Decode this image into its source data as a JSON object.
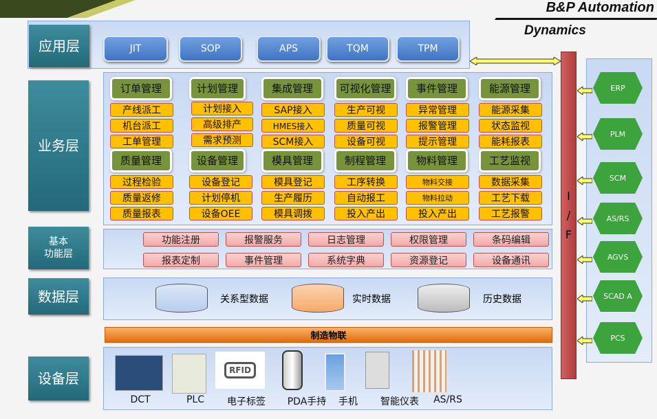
{
  "logo": {
    "line1": "B&P Automation",
    "line2": "Dynamics"
  },
  "layers": {
    "app": "应用层",
    "business": "业务层",
    "basic": "基本\n功能层",
    "data": "数据层",
    "device": "设备层"
  },
  "apps": [
    "JIT",
    "SOP",
    "APS",
    "TQM",
    "TPM"
  ],
  "business": [
    {
      "header": "订单管理",
      "items": [
        "产线派工",
        "机台派工",
        "工单管理"
      ]
    },
    {
      "header": "计划管理",
      "items": [
        "计划接入",
        "高级排产",
        "需求预测"
      ]
    },
    {
      "header": "集成管理",
      "items": [
        "SAP接入",
        "HMES接入",
        "SCM接入"
      ]
    },
    {
      "header": "可视化管理",
      "items": [
        "生产可视",
        "质量可视",
        "设备可视"
      ]
    },
    {
      "header": "事件管理",
      "items": [
        "异常管理",
        "报警管理",
        "提示管理"
      ]
    },
    {
      "header": "能源管理",
      "items": [
        "能源采集",
        "状态监视",
        "能耗报表"
      ]
    },
    {
      "header": "质量管理",
      "items": [
        "过程检验",
        "质量返修",
        "质量报表"
      ]
    },
    {
      "header": "设备管理",
      "items": [
        "设备登记",
        "计划停机",
        "设备OEE"
      ]
    },
    {
      "header": "模具管理",
      "items": [
        "模具登记",
        "生产履历",
        "模具调拨"
      ]
    },
    {
      "header": "制程管理",
      "items": [
        "工序转换",
        "自动报工",
        "投入产出"
      ]
    },
    {
      "header": "物料管理",
      "items": [
        "物料交接",
        "物料拉动",
        "投入产出"
      ]
    },
    {
      "header": "工艺监视",
      "items": [
        "数据采集",
        "工艺下载",
        "工艺报警"
      ]
    }
  ],
  "functions": [
    "功能注册",
    "报警服务",
    "日志管理",
    "权限管理",
    "条码编辑",
    "报表定制",
    "事件管理",
    "系统字典",
    "资源登记",
    "设备通讯"
  ],
  "data": [
    "关系型数据",
    "实时数据",
    "历史数据"
  ],
  "iot": "制造物联",
  "devices": [
    "DCT",
    "PLC",
    "电子标签",
    "PDA手持",
    "手机",
    "智能仪表",
    "AS/RS"
  ],
  "rfid": "RFID",
  "interface": [
    "I",
    "/",
    "F"
  ],
  "systems": [
    "ERP",
    "PLM",
    "SCM",
    "AS/RS",
    "AGVS",
    "SCAD A",
    "PCS"
  ],
  "colors": {
    "layer": "#2e7d8c",
    "header": "#77933c",
    "item": "#ffc000",
    "interface": "#c0504d",
    "system": "#3da33d"
  }
}
